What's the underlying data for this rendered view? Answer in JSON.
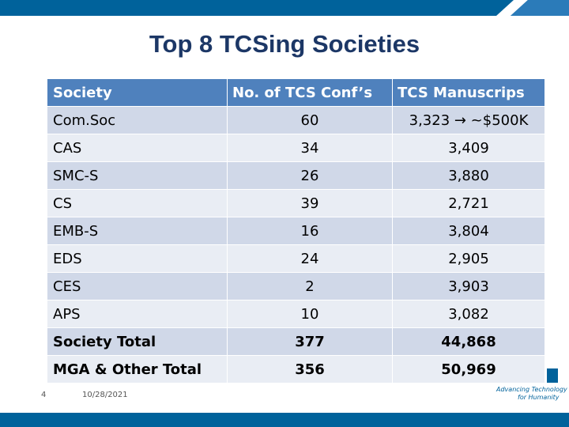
{
  "header": {
    "title": "Top 8 TCSing Societies"
  },
  "table": {
    "columns": [
      "Society",
      "No. of TCS Conf’s",
      "TCS Manuscrips"
    ],
    "rows": [
      [
        "Com.Soc",
        "60",
        "3,323 → ~$500K"
      ],
      [
        "CAS",
        "34",
        "3,409"
      ],
      [
        "SMC-S",
        "26",
        "3,880"
      ],
      [
        "CS",
        "39",
        "2,721"
      ],
      [
        "EMB-S",
        "16",
        "3,804"
      ],
      [
        "EDS",
        "24",
        "2,905"
      ],
      [
        "CES",
        "2",
        "3,903"
      ],
      [
        "APS",
        "10",
        "3,082"
      ],
      [
        "Society Total",
        "377",
        "44,868"
      ],
      [
        "MGA & Other Total",
        "356",
        "50,969"
      ]
    ]
  },
  "footer": {
    "page": "4",
    "date": "10/28/2021",
    "tagline": [
      "Advancing Technology",
      "for Humanity"
    ]
  }
}
